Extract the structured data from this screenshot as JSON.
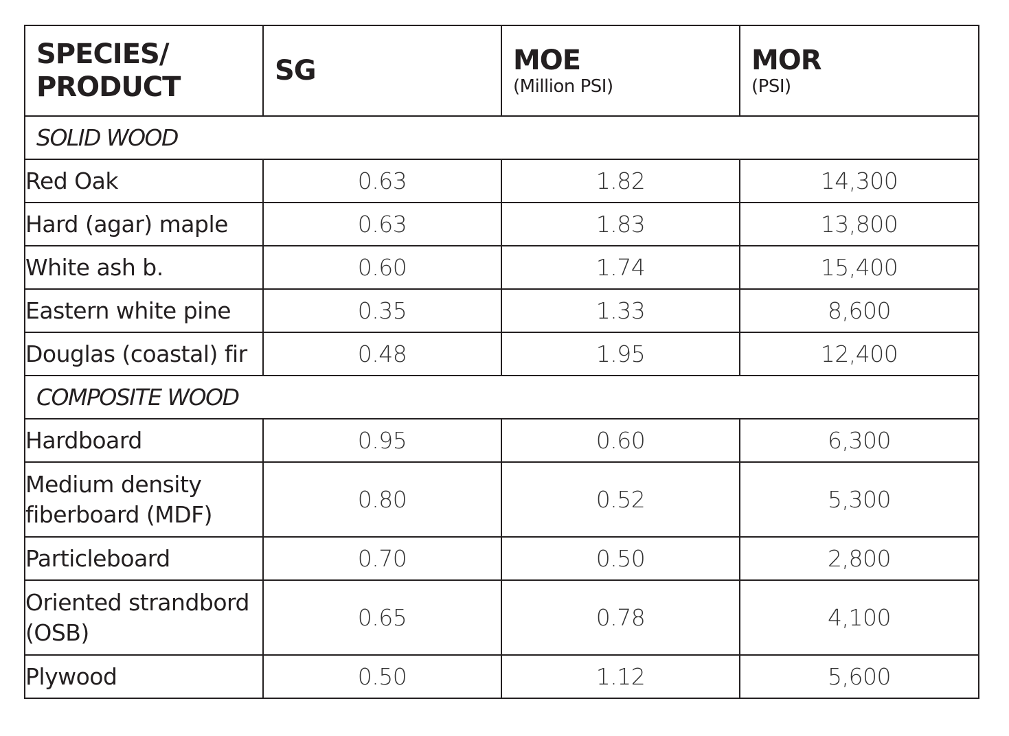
{
  "header": {
    "species": "SPECIES/ PRODUCT",
    "sg": "SG",
    "moe": "MOE",
    "moe_unit": "(Million PSI)",
    "mor": "MOR",
    "mor_unit": "(PSI)"
  },
  "sections": [
    {
      "title": "SOLID WOOD",
      "rows": [
        {
          "name": "Red Oak",
          "sg": "0.63",
          "moe": "1.82",
          "mor": "14,300"
        },
        {
          "name": "Hard (agar) maple",
          "sg": "0.63",
          "moe": "1.83",
          "mor": "13,800"
        },
        {
          "name": "White ash b.",
          "sg": "0.60",
          "moe": "1.74",
          "mor": "15,400"
        },
        {
          "name": "Eastern white pine",
          "sg": "0.35",
          "moe": "1.33",
          "mor": "8,600"
        },
        {
          "name": "Douglas (coastal) fir",
          "sg": "0.48",
          "moe": "1.95",
          "mor": "12,400"
        }
      ]
    },
    {
      "title": "COMPOSITE WOOD",
      "rows": [
        {
          "name": "Hardboard",
          "sg": "0.95",
          "moe": "0.60",
          "mor": "6,300"
        },
        {
          "name": "Medium density fiberboard (MDF)",
          "sg": "0.80",
          "moe": "0.52",
          "mor": "5,300"
        },
        {
          "name": "Particleboard",
          "sg": "0.70",
          "moe": "0.50",
          "mor": "2,800"
        },
        {
          "name": "Oriented strandbord (OSB)",
          "sg": "0.65",
          "moe": "0.78",
          "mor": "4,100"
        },
        {
          "name": "Plywood",
          "sg": "0.50",
          "moe": "1.12",
          "mor": "5,600"
        }
      ]
    }
  ]
}
